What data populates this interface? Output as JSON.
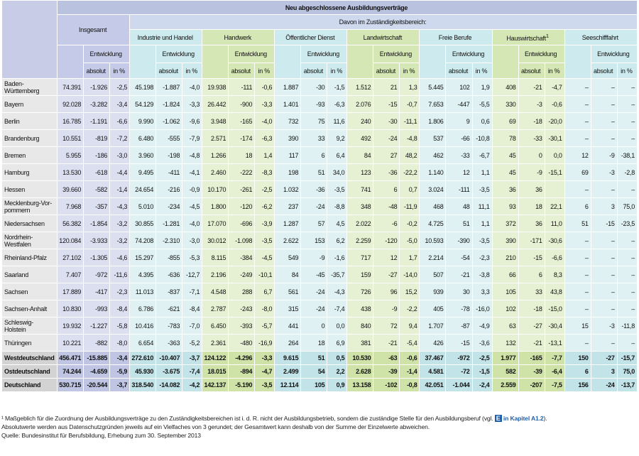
{
  "header": {
    "title": "Neu abgeschlossene Ausbildungsverträge",
    "total": "Insgesamt",
    "subtitle": "Davon im Zuständigkeitsbereich:",
    "sectors": [
      "Industrie und Handel",
      "Handwerk",
      "Öffentlicher Dienst",
      "Landwirtschaft",
      "Freie Berufe",
      "Hauswirtschaft",
      "Seeschifffahrt"
    ],
    "sector_superscripts": [
      null,
      null,
      null,
      null,
      null,
      "1",
      null
    ],
    "development": "Entwicklung",
    "absolute": "absolut",
    "percent": "in %"
  },
  "table": {
    "rows": [
      {
        "label": "Baden-Württemberg",
        "cells": [
          "74.391",
          "-1.926",
          "-2,5",
          "45.198",
          "-1.887",
          "-4,0",
          "19.938",
          "-111",
          "-0,6",
          "1.887",
          "-30",
          "-1,5",
          "1.512",
          "21",
          "1,3",
          "5.445",
          "102",
          "1,9",
          "408",
          "-21",
          "-4,7",
          "–",
          "–",
          "–"
        ]
      },
      {
        "label": "Bayern",
        "cells": [
          "92.028",
          "-3.282",
          "-3,4",
          "54.129",
          "-1.824",
          "-3,3",
          "26.442",
          "-900",
          "-3,3",
          "1.401",
          "-93",
          "-6,3",
          "2.076",
          "-15",
          "-0,7",
          "7.653",
          "-447",
          "-5,5",
          "330",
          "-3",
          "-0,6",
          "–",
          "–",
          "–"
        ]
      },
      {
        "label": "Berlin",
        "cells": [
          "16.785",
          "-1.191",
          "-6,6",
          "9.990",
          "-1.062",
          "-9,6",
          "3.948",
          "-165",
          "-4,0",
          "732",
          "75",
          "11,6",
          "240",
          "-30",
          "-11,1",
          "1.806",
          "9",
          "0,6",
          "69",
          "-18",
          "-20,0",
          "–",
          "–",
          "–"
        ]
      },
      {
        "label": "Brandenburg",
        "cells": [
          "10.551",
          "-819",
          "-7,2",
          "6.480",
          "-555",
          "-7,9",
          "2.571",
          "-174",
          "-6,3",
          "390",
          "33",
          "9,2",
          "492",
          "-24",
          "-4,8",
          "537",
          "-66",
          "-10,8",
          "78",
          "-33",
          "-30,1",
          "–",
          "–",
          "–"
        ]
      },
      {
        "label": "Bremen",
        "cells": [
          "5.955",
          "-186",
          "-3,0",
          "3.960",
          "-198",
          "-4,8",
          "1.266",
          "18",
          "1,4",
          "117",
          "6",
          "6,4",
          "84",
          "27",
          "48,2",
          "462",
          "-33",
          "-6,7",
          "45",
          "0",
          "0,0",
          "12",
          "-9",
          "-38,1"
        ]
      },
      {
        "label": "Hamburg",
        "cells": [
          "13.530",
          "-618",
          "-4,4",
          "9.495",
          "-411",
          "-4,1",
          "2.460",
          "-222",
          "-8,3",
          "198",
          "51",
          "34,0",
          "123",
          "-36",
          "-22,2",
          "1.140",
          "12",
          "1,1",
          "45",
          "-9",
          "-15,1",
          "69",
          "-3",
          "-2,8"
        ]
      },
      {
        "label": "Hessen",
        "cells": [
          "39.660",
          "-582",
          "-1,4",
          "24.654",
          "-216",
          "-0,9",
          "10.170",
          "-261",
          "-2,5",
          "1.032",
          "-36",
          "-3,5",
          "741",
          "6",
          "0,7",
          "3.024",
          "-111",
          "-3,5",
          "36",
          "36",
          null,
          "–",
          "–",
          "–"
        ]
      },
      {
        "label": "Mecklenburg-Vor-pommern",
        "cells": [
          "7.968",
          "-357",
          "-4,3",
          "5.010",
          "-234",
          "-4,5",
          "1.800",
          "-120",
          "-6,2",
          "237",
          "-24",
          "-8,8",
          "348",
          "-48",
          "-11,9",
          "468",
          "48",
          "11,1",
          "93",
          "18",
          "22,1",
          "6",
          "3",
          "75,0"
        ]
      },
      {
        "label": "Niedersachsen",
        "cells": [
          "56.382",
          "-1.854",
          "-3,2",
          "30.855",
          "-1.281",
          "-4,0",
          "17.070",
          "-696",
          "-3,9",
          "1.287",
          "57",
          "4,5",
          "2.022",
          "-6",
          "-0,2",
          "4.725",
          "51",
          "1,1",
          "372",
          "36",
          "11,0",
          "51",
          "-15",
          "-23,5"
        ]
      },
      {
        "label": "Nordrhein-Westfalen",
        "cells": [
          "120.084",
          "-3.933",
          "-3,2",
          "74.208",
          "-2.310",
          "-3,0",
          "30.012",
          "-1.098",
          "-3,5",
          "2.622",
          "153",
          "6,2",
          "2.259",
          "-120",
          "-5,0",
          "10.593",
          "-390",
          "-3,5",
          "390",
          "-171",
          "-30,6",
          "–",
          "–",
          "–"
        ]
      },
      {
        "label": "Rheinland-Pfalz",
        "cells": [
          "27.102",
          "-1.305",
          "-4,6",
          "15.297",
          "-855",
          "-5,3",
          "8.115",
          "-384",
          "-4,5",
          "549",
          "-9",
          "-1,6",
          "717",
          "12",
          "1,7",
          "2.214",
          "-54",
          "-2,3",
          "210",
          "-15",
          "-6,6",
          "–",
          "–",
          "–"
        ]
      },
      {
        "label": "Saarland",
        "cells": [
          "7.407",
          "-972",
          "-11,6",
          "4.395",
          "-636",
          "-12,7",
          "2.196",
          "-249",
          "-10,1",
          "84",
          "-45",
          "-35,7",
          "159",
          "-27",
          "-14,0",
          "507",
          "-21",
          "-3,8",
          "66",
          "6",
          "8,3",
          "–",
          "–",
          "–"
        ]
      },
      {
        "label": "Sachsen",
        "cells": [
          "17.889",
          "-417",
          "-2,3",
          "11.013",
          "-837",
          "-7,1",
          "4.548",
          "288",
          "6,7",
          "561",
          "-24",
          "-4,3",
          "726",
          "96",
          "15,2",
          "939",
          "30",
          "3,3",
          "105",
          "33",
          "43,8",
          "–",
          "–",
          "–"
        ]
      },
      {
        "label": "Sachsen-Anhalt",
        "cells": [
          "10.830",
          "-993",
          "-8,4",
          "6.786",
          "-621",
          "-8,4",
          "2.787",
          "-243",
          "-8,0",
          "315",
          "-24",
          "-7,4",
          "438",
          "-9",
          "-2,2",
          "405",
          "-78",
          "-16,0",
          "102",
          "-18",
          "-15,0",
          "–",
          "–",
          "–"
        ]
      },
      {
        "label": "Schleswig-Holstein",
        "cells": [
          "19.932",
          "-1.227",
          "-5,8",
          "10.416",
          "-783",
          "-7,0",
          "6.450",
          "-393",
          "-5,7",
          "441",
          "0",
          "0,0",
          "840",
          "72",
          "9,4",
          "1.707",
          "-87",
          "-4,9",
          "63",
          "-27",
          "-30,4",
          "15",
          "-3",
          "-11,8"
        ]
      },
      {
        "label": "Thüringen",
        "cells": [
          "10.221",
          "-882",
          "-8,0",
          "6.654",
          "-363",
          "-5,2",
          "2.361",
          "-480",
          "-16,9",
          "264",
          "18",
          "6,9",
          "381",
          "-21",
          "-5,4",
          "426",
          "-15",
          "-3,6",
          "132",
          "-21",
          "-13,1",
          "–",
          "–",
          "–"
        ]
      }
    ],
    "summary_rows": [
      {
        "label": "Westdeutschland",
        "cells": [
          "456.471",
          "-15.885",
          "-3,4",
          "272.610",
          "-10.407",
          "-3,7",
          "124.122",
          "-4.296",
          "-3,3",
          "9.615",
          "51",
          "0,5",
          "10.530",
          "-63",
          "-0,6",
          "37.467",
          "-972",
          "-2,5",
          "1.977",
          "-165",
          "-7,7",
          "150",
          "-27",
          "-15,7"
        ]
      },
      {
        "label": "Ostdeutschland",
        "cells": [
          "74.244",
          "-4.659",
          "-5,9",
          "45.930",
          "-3.675",
          "-7,4",
          "18.015",
          "-894",
          "-4,7",
          "2.499",
          "54",
          "2,2",
          "2.628",
          "-39",
          "-1,4",
          "4.581",
          "-72",
          "-1,5",
          "582",
          "-39",
          "-6,4",
          "6",
          "3",
          "75,0"
        ]
      },
      {
        "label": "Deutschland",
        "cells": [
          "530.715",
          "-20.544",
          "-3,7",
          "318.540",
          "-14.082",
          "-4,2",
          "142.137",
          "-5.190",
          "-3,5",
          "12.114",
          "105",
          "0,9",
          "13.158",
          "-102",
          "-0,8",
          "42.051",
          "-1.044",
          "-2,4",
          "2.559",
          "-207",
          "-7,5",
          "156",
          "-24",
          "-13,7"
        ]
      }
    ]
  },
  "footnote": {
    "text_before": "¹ Maßgeblich für die Zuordnung der Ausbildungsverträge zu den Zuständigkeitsbereichen ist i. d. R. nicht der Ausbildungsbetrieb, sondern die zuständige Stelle für den Ausbildungsberuf (vgl. ",
    "icon": "E",
    "link": "in Kapitel A1.2",
    "text_after": ").",
    "note2": "Absolutwerte werden aus Datenschutzgründen jeweils auf ein Vielfaches von 3 gerundet; der Gesamtwert kann deshalb von der Summe der Einzelwerte abweichen.",
    "source": "Quelle: Bundesinstitut für Berufsbildung, Erhebung zum 30. September 2013"
  }
}
